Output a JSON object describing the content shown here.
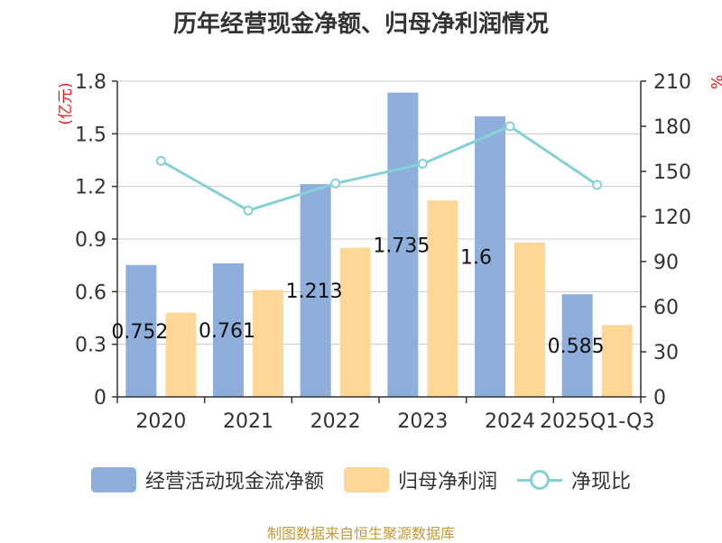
{
  "chart_data": {
    "type": "bar",
    "title": "历年经营现金净额、归母净利润情况",
    "categories": [
      "2020",
      "2021",
      "2022",
      "2023",
      "2024",
      "2025Q1-Q3"
    ],
    "series": [
      {
        "name": "经营活动现金流净额",
        "kind": "bar",
        "axis": "left",
        "color": "#8eaedc",
        "values": [
          0.752,
          0.761,
          1.213,
          1.735,
          1.6,
          0.585
        ],
        "labels": [
          "0.752",
          "0.761",
          "1.213",
          "1.735",
          "1.6",
          "0.585"
        ]
      },
      {
        "name": "归母净利润",
        "kind": "bar",
        "axis": "left",
        "color": "#fed797",
        "values": [
          0.48,
          0.61,
          0.85,
          1.12,
          0.88,
          0.41
        ]
      },
      {
        "name": "净现比",
        "kind": "line",
        "axis": "right",
        "color": "#86d1d7",
        "values": [
          157,
          124,
          142,
          155,
          180,
          141
        ]
      }
    ],
    "y_left": {
      "label": "(亿元)",
      "min": 0,
      "max": 1.8,
      "ticks": [
        "0",
        "0.3",
        "0.6",
        "0.9",
        "1.2",
        "1.5",
        "1.8"
      ],
      "tick_values": [
        0,
        0.3,
        0.6,
        0.9,
        1.2,
        1.5,
        1.8
      ]
    },
    "y_right": {
      "label": "%",
      "min": 0,
      "max": 210,
      "ticks": [
        "0",
        "30",
        "60",
        "90",
        "120",
        "150",
        "180",
        "210"
      ],
      "tick_values": [
        0,
        30,
        60,
        90,
        120,
        150,
        180,
        210
      ]
    },
    "grid": true,
    "legend_position": "bottom"
  },
  "source": "制图数据来自恒生聚源数据库",
  "colors": {
    "axis_left_label": "#e02020",
    "axis_right_label": "#e02020",
    "grid": "#cccccc",
    "text": "#333333"
  }
}
